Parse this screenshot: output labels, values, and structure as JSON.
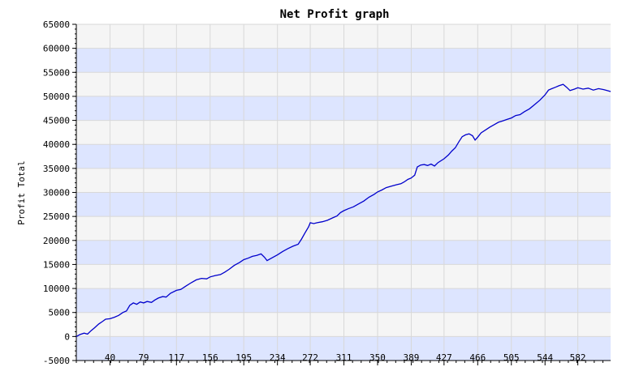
{
  "chart_data": {
    "type": "line",
    "title": "Net Profit graph",
    "xlabel": "",
    "ylabel": "Profit Total",
    "ylim": [
      -5000,
      65000
    ],
    "xlim": [
      1,
      620
    ],
    "y_ticks": [
      -5000,
      0,
      5000,
      10000,
      15000,
      20000,
      25000,
      30000,
      35000,
      40000,
      45000,
      50000,
      55000,
      60000,
      65000
    ],
    "x_ticks": [
      40,
      79,
      117,
      156,
      195,
      234,
      272,
      311,
      350,
      389,
      427,
      466,
      505,
      544,
      582
    ],
    "grid": true,
    "band_colors": [
      "#dde5ff",
      "#f5f5f5"
    ],
    "line_color": "#0000cc",
    "series": [
      {
        "points": [
          [
            1,
            0
          ],
          [
            5,
            400
          ],
          [
            10,
            700
          ],
          [
            14,
            500
          ],
          [
            18,
            1200
          ],
          [
            22,
            1800
          ],
          [
            27,
            2600
          ],
          [
            31,
            3100
          ],
          [
            35,
            3600
          ],
          [
            40,
            3700
          ],
          [
            45,
            4000
          ],
          [
            50,
            4400
          ],
          [
            55,
            5000
          ],
          [
            59,
            5300
          ],
          [
            63,
            6500
          ],
          [
            67,
            7000
          ],
          [
            71,
            6700
          ],
          [
            75,
            7200
          ],
          [
            79,
            7000
          ],
          [
            83,
            7300
          ],
          [
            88,
            7100
          ],
          [
            92,
            7600
          ],
          [
            96,
            8000
          ],
          [
            101,
            8300
          ],
          [
            105,
            8200
          ],
          [
            110,
            9000
          ],
          [
            117,
            9600
          ],
          [
            122,
            9800
          ],
          [
            128,
            10500
          ],
          [
            134,
            11200
          ],
          [
            140,
            11800
          ],
          [
            146,
            12100
          ],
          [
            152,
            12000
          ],
          [
            156,
            12400
          ],
          [
            162,
            12700
          ],
          [
            168,
            12900
          ],
          [
            173,
            13400
          ],
          [
            178,
            14000
          ],
          [
            184,
            14800
          ],
          [
            190,
            15400
          ],
          [
            195,
            16000
          ],
          [
            200,
            16300
          ],
          [
            205,
            16700
          ],
          [
            210,
            16900
          ],
          [
            215,
            17200
          ],
          [
            219,
            16500
          ],
          [
            222,
            15800
          ],
          [
            227,
            16300
          ],
          [
            234,
            17000
          ],
          [
            240,
            17700
          ],
          [
            246,
            18300
          ],
          [
            252,
            18800
          ],
          [
            258,
            19200
          ],
          [
            262,
            20300
          ],
          [
            266,
            21600
          ],
          [
            270,
            22800
          ],
          [
            272,
            23700
          ],
          [
            276,
            23500
          ],
          [
            280,
            23700
          ],
          [
            286,
            23900
          ],
          [
            292,
            24200
          ],
          [
            298,
            24700
          ],
          [
            303,
            25100
          ],
          [
            307,
            25800
          ],
          [
            311,
            26200
          ],
          [
            316,
            26600
          ],
          [
            322,
            27000
          ],
          [
            328,
            27600
          ],
          [
            334,
            28200
          ],
          [
            340,
            29000
          ],
          [
            346,
            29600
          ],
          [
            350,
            30100
          ],
          [
            355,
            30500
          ],
          [
            360,
            31000
          ],
          [
            366,
            31300
          ],
          [
            372,
            31600
          ],
          [
            377,
            31800
          ],
          [
            381,
            32200
          ],
          [
            385,
            32700
          ],
          [
            389,
            33000
          ],
          [
            393,
            33600
          ],
          [
            396,
            35300
          ],
          [
            400,
            35700
          ],
          [
            404,
            35800
          ],
          [
            408,
            35600
          ],
          [
            412,
            35900
          ],
          [
            416,
            35500
          ],
          [
            420,
            36200
          ],
          [
            427,
            37000
          ],
          [
            432,
            37800
          ],
          [
            436,
            38600
          ],
          [
            440,
            39300
          ],
          [
            444,
            40500
          ],
          [
            448,
            41600
          ],
          [
            452,
            42000
          ],
          [
            456,
            42200
          ],
          [
            460,
            41800
          ],
          [
            463,
            40900
          ],
          [
            466,
            41500
          ],
          [
            470,
            42400
          ],
          [
            475,
            43000
          ],
          [
            480,
            43600
          ],
          [
            485,
            44100
          ],
          [
            490,
            44600
          ],
          [
            495,
            44900
          ],
          [
            500,
            45200
          ],
          [
            505,
            45500
          ],
          [
            510,
            46000
          ],
          [
            515,
            46200
          ],
          [
            520,
            46800
          ],
          [
            526,
            47400
          ],
          [
            532,
            48300
          ],
          [
            538,
            49200
          ],
          [
            544,
            50300
          ],
          [
            548,
            51300
          ],
          [
            552,
            51600
          ],
          [
            556,
            51900
          ],
          [
            560,
            52200
          ],
          [
            565,
            52500
          ],
          [
            569,
            51900
          ],
          [
            573,
            51200
          ],
          [
            578,
            51500
          ],
          [
            582,
            51800
          ],
          [
            588,
            51500
          ],
          [
            594,
            51700
          ],
          [
            600,
            51300
          ],
          [
            606,
            51600
          ],
          [
            612,
            51400
          ],
          [
            616,
            51200
          ],
          [
            620,
            51000
          ]
        ]
      }
    ]
  }
}
